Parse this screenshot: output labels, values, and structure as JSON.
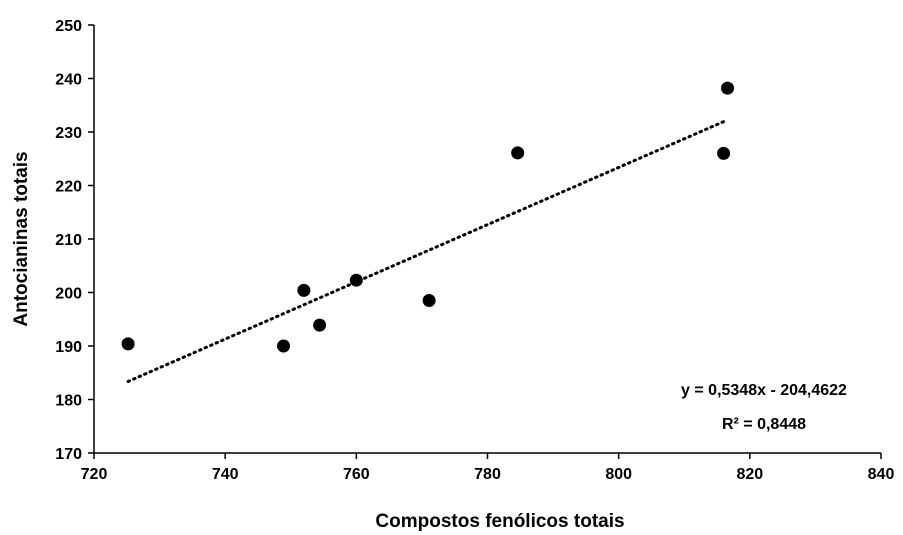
{
  "chart_data": {
    "type": "scatter",
    "xlabel": "Compostos fenólicos totais",
    "ylabel": "Antocianinas totais",
    "xlim": [
      720,
      840
    ],
    "ylim": [
      170,
      250
    ],
    "x_ticks": [
      720,
      740,
      760,
      780,
      800,
      820,
      840
    ],
    "y_ticks": [
      170,
      180,
      190,
      200,
      210,
      220,
      230,
      240,
      250
    ],
    "grid": false,
    "points": [
      {
        "x": 725.2,
        "y": 190.4
      },
      {
        "x": 748.9,
        "y": 190.0
      },
      {
        "x": 752.0,
        "y": 200.4
      },
      {
        "x": 754.4,
        "y": 193.9
      },
      {
        "x": 760.0,
        "y": 202.3
      },
      {
        "x": 771.1,
        "y": 198.5
      },
      {
        "x": 784.6,
        "y": 226.1
      },
      {
        "x": 816.0,
        "y": 226.0
      },
      {
        "x": 816.6,
        "y": 238.2
      }
    ],
    "trendline": {
      "type": "linear",
      "slope": 0.5348,
      "intercept": -204.4622,
      "x_range": [
        725.2,
        816.6
      ],
      "style": "dotted"
    },
    "annotations": {
      "equation": "y = 0,5348x - 204,4622",
      "r_squared": "R² = 0,8448"
    }
  }
}
